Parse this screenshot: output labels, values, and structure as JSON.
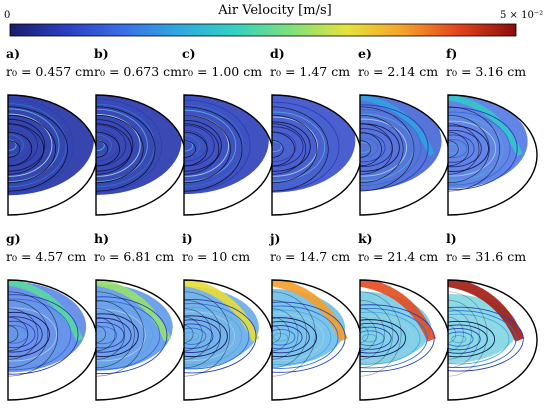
{
  "colorbar": {
    "title": "Air Velocity [m/s]",
    "min_label": "0",
    "max_label": "5 × 10⁻²",
    "colors": [
      "#1a1d6b",
      "#2b3fc1",
      "#3b6ee6",
      "#2fa9e0",
      "#33d1c1",
      "#7fe07a",
      "#e6e33a",
      "#f5a02a",
      "#e0421e",
      "#8b0c0c"
    ]
  },
  "panels": [
    {
      "letter": "a)",
      "radius": "r₀ = 0.457 cm",
      "level": 0.08
    },
    {
      "letter": "b)",
      "radius": "r₀ = 0.673 cm",
      "level": 0.1
    },
    {
      "letter": "c)",
      "radius": "r₀ = 1.00 cm",
      "level": 0.14
    },
    {
      "letter": "d)",
      "radius": "r₀ = 1.47 cm",
      "level": 0.22
    },
    {
      "letter": "e)",
      "radius": "r₀ = 2.14 cm",
      "level": 0.32
    },
    {
      "letter": "f)",
      "radius": "r₀ = 3.16 cm",
      "level": 0.42
    },
    {
      "letter": "g)",
      "radius": "r₀ = 4.57 cm",
      "level": 0.5
    },
    {
      "letter": "h)",
      "radius": "r₀ = 6.81 cm",
      "level": 0.58
    },
    {
      "letter": "i)",
      "radius": "r₀ = 10 cm",
      "level": 0.68
    },
    {
      "letter": "j)",
      "radius": "r₀ = 14.7 cm",
      "level": 0.78
    },
    {
      "letter": "k)",
      "radius": "r₀ = 21.4 cm",
      "level": 0.88
    },
    {
      "letter": "l)",
      "radius": "r₀ = 31.6 cm",
      "level": 0.97
    }
  ]
}
